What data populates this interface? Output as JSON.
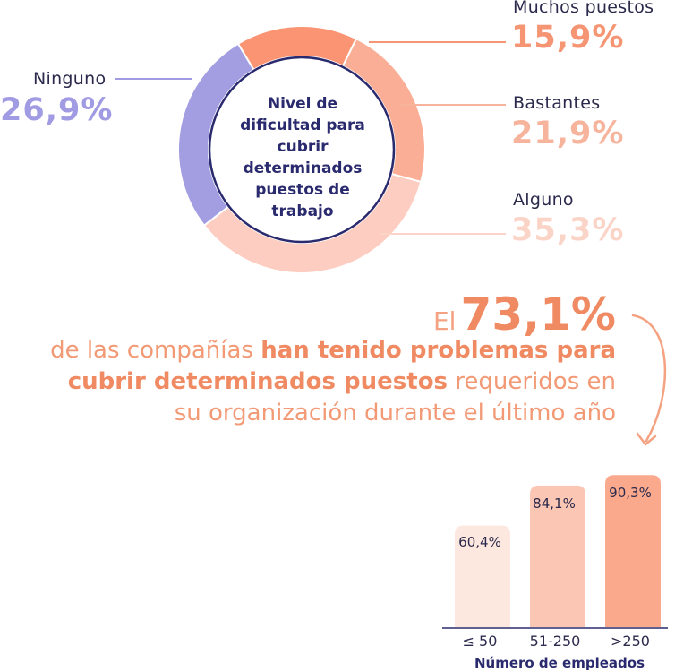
{
  "chart_data": [
    {
      "type": "pie",
      "style": "donut",
      "title": "Nivel de dificultad para cubrir determinados puestos de trabajo",
      "center_text": "Nivel de dificultad para cubrir determinados puestos de trabajo",
      "categories": [
        "Muchos puestos",
        "Bastantes",
        "Alguno",
        "Ninguno"
      ],
      "values": [
        15.9,
        21.9,
        35.3,
        26.9
      ],
      "value_labels": [
        "15,9%",
        "21,9%",
        "35,3%",
        "26,9%"
      ],
      "colors": [
        "#fa9472",
        "#fbae96",
        "#fccdc0",
        "#a39ee2"
      ],
      "label_colors": [
        "#f59574",
        "#f6b49d",
        "#fbd4c8",
        "#a09be3"
      ]
    },
    {
      "type": "bar",
      "categories": [
        "≤ 50",
        "51-250",
        ">250"
      ],
      "values": [
        60.4,
        84.1,
        90.3
      ],
      "value_labels": [
        "60,4%",
        "84,1%",
        "90,3%"
      ],
      "xlabel": "Número de empleados",
      "ylabel": "",
      "ylim": [
        0,
        100
      ],
      "colors": [
        "#fde8e0",
        "#fbc6b4",
        "#fba98c"
      ]
    }
  ],
  "headline": {
    "prefix": "El",
    "value": "73,1%",
    "line1_plain": "de las compañías ",
    "line1_bold": "han tenido problemas para",
    "line2_bold": "cubrir determinados puestos",
    "line2_plain": " requeridos en",
    "line3": "su organización durante el último año"
  },
  "colors": {
    "navy": "#2a2a6e",
    "accent": "#f08a62",
    "arrow": "#f4a281"
  }
}
